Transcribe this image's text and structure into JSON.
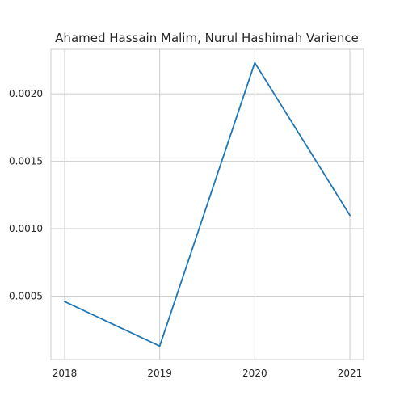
{
  "chart_data": {
    "type": "line",
    "title": "Ahamed Hassain Malim, Nurul Hashimah Varience",
    "xlabel": "",
    "ylabel": "",
    "x": [
      "2018",
      "2019",
      "2020",
      "2021"
    ],
    "series": [
      {
        "values": [
          0.00046,
          0.00013,
          0.00223,
          0.0011
        ],
        "color": "#1f77b4"
      }
    ],
    "yticks": [
      "0.0005",
      "0.0010",
      "0.0015",
      "0.0020"
    ],
    "ylim": [
      3e-05,
      0.00233
    ],
    "grid": true,
    "legend": "none"
  }
}
